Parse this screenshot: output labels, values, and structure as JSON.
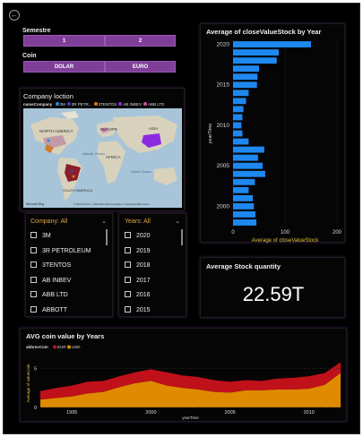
{
  "semestre": {
    "label": "Semestre",
    "options": [
      "1",
      "2"
    ]
  },
  "coin": {
    "label": "Coin",
    "options": [
      "DOLAR",
      "EURO"
    ]
  },
  "map": {
    "title": "Company loction",
    "legend_title": "nameCompany",
    "legend_items": [
      {
        "name": "3M",
        "color": "#2b8bd6"
      },
      {
        "name": "3R PETR...",
        "color": "#4040b0"
      },
      {
        "name": "3TENTOS",
        "color": "#e07b00"
      },
      {
        "name": "AB INBEV",
        "color": "#8a2be2"
      },
      {
        "name": "ABB LTD",
        "color": "#d050a0"
      }
    ],
    "labels": {
      "north_america": "NORTH AMERICA",
      "europe": "EUROPE",
      "asia": "ASIA",
      "africa": "AFRICA",
      "south_america": "SOUTH AMERICA",
      "atlantic": "Atlantic Ocean",
      "indian": "Indian Ocean"
    },
    "attribution_left": "Microsoft Bing",
    "attribution_right": "© 2023 TomTom, © 2023 Microsoft Corporation, © OpenStreetMap Terms"
  },
  "company_filter": {
    "header": "Company: All",
    "items": [
      "3M",
      "3R PETROLEUM",
      "3TENTOS",
      "AB INBEV",
      "ABB LTD",
      "ABBOTT"
    ]
  },
  "years_filter": {
    "header": "Years: All",
    "items": [
      "2020",
      "2019",
      "2018",
      "2017",
      "2016",
      "2015"
    ]
  },
  "card": {
    "title": "Average Stock quantity",
    "value": "22.59T"
  },
  "chart_data": [
    {
      "type": "bar",
      "orientation": "horizontal",
      "title": "Average of closeValueStock by Year",
      "xlabel": "Average of closeValueStock",
      "ylabel": "yearTime",
      "xlim": [
        0,
        200
      ],
      "x_ticks": [
        "0",
        "100",
        "200"
      ],
      "y_ticks": [
        "2020",
        "2015",
        "2010",
        "2005",
        "2000"
      ],
      "categories": [
        2020,
        2019,
        2018,
        2017,
        2016,
        2015,
        2014,
        2013,
        2012,
        2011,
        2010,
        2009,
        2008,
        2007,
        2006,
        2005,
        2004,
        2003,
        2002,
        2001,
        2000,
        1999,
        1998
      ],
      "values": [
        150,
        88,
        84,
        50,
        47,
        46,
        30,
        25,
        20,
        18,
        16,
        18,
        30,
        60,
        48,
        57,
        62,
        42,
        30,
        38,
        40,
        43,
        45
      ],
      "color": "#1e88f0"
    },
    {
      "type": "area",
      "stacked": true,
      "title": "AVG coin value by Years",
      "legend_title": "abbrevCoin",
      "xlabel": "yearTime",
      "ylabel": "Average of valueCoin",
      "x_ticks": [
        "1995",
        "2000",
        "2005",
        "2010"
      ],
      "y_ticks": [
        "0",
        "5"
      ],
      "x": [
        1993,
        1994,
        1995,
        1996,
        1997,
        1998,
        1999,
        2000,
        2001,
        2002,
        2003,
        2004,
        2005,
        2006,
        2007,
        2008,
        2009,
        2010,
        2011,
        2012
      ],
      "series": [
        {
          "name": "EUR",
          "color": "#c0101a",
          "values": [
            1.1,
            1.3,
            1.4,
            1.5,
            1.4,
            1.4,
            1.4,
            1.5,
            1.7,
            1.6,
            1.6,
            1.5,
            1.4,
            1.3,
            1.2,
            1.4,
            1.5,
            1.6,
            1.5,
            1.4
          ]
        },
        {
          "name": "USD",
          "color": "#e08a00",
          "values": [
            1.0,
            1.2,
            1.4,
            1.8,
            2.0,
            2.6,
            3.1,
            3.4,
            2.8,
            2.5,
            2.3,
            2.0,
            1.9,
            2.2,
            2.2,
            2.3,
            2.3,
            2.4,
            2.9,
            4.4
          ]
        }
      ]
    }
  ]
}
